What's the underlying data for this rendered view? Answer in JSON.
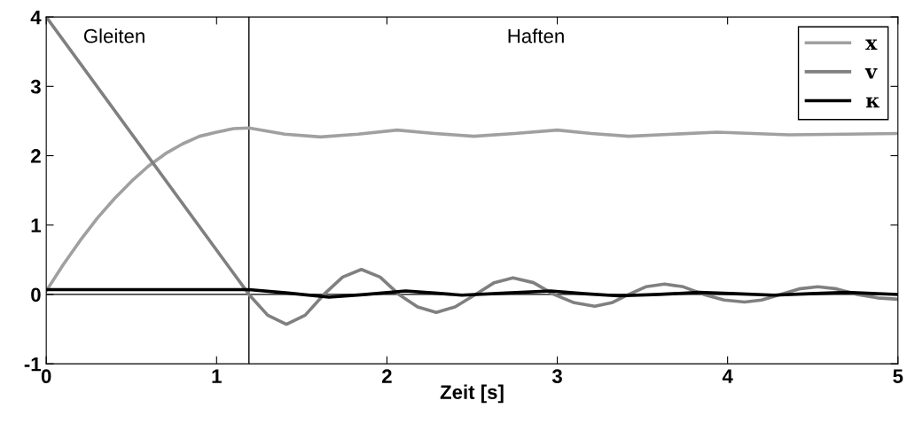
{
  "chart_data": {
    "type": "line",
    "xlabel": "Zeit [s]",
    "xlim": [
      0,
      5
    ],
    "ylim": [
      -1,
      4
    ],
    "xticks": [
      0,
      1,
      2,
      3,
      4,
      5
    ],
    "yticks": [
      -1,
      0,
      1,
      2,
      3,
      4
    ],
    "grid": false,
    "legend": "top right",
    "line_style": "solid",
    "marker": "none",
    "series": [
      {
        "name": "x",
        "color": "#a0a0a0",
        "x": [
          0,
          0.1,
          0.2,
          0.3,
          0.4,
          0.5,
          0.6,
          0.7,
          0.8,
          0.9,
          1.0,
          1.1,
          1.19,
          1.4,
          1.61,
          1.83,
          2.06,
          2.28,
          2.51,
          2.75,
          3.0,
          3.2,
          3.42,
          3.68,
          3.94,
          4.15,
          4.36,
          4.7,
          5.0
        ],
        "values": [
          0.05,
          0.43,
          0.78,
          1.1,
          1.38,
          1.63,
          1.85,
          2.03,
          2.17,
          2.28,
          2.34,
          2.39,
          2.4,
          2.31,
          2.27,
          2.31,
          2.37,
          2.32,
          2.28,
          2.32,
          2.37,
          2.32,
          2.28,
          2.31,
          2.34,
          2.32,
          2.3,
          2.31,
          2.32
        ]
      },
      {
        "name": "v",
        "color": "#808080",
        "x": [
          0,
          1.19,
          1.3,
          1.41,
          1.52,
          1.63,
          1.74,
          1.85,
          1.96,
          2.07,
          2.18,
          2.29,
          2.4,
          2.52,
          2.63,
          2.74,
          2.86,
          2.98,
          3.1,
          3.22,
          3.32,
          3.42,
          3.52,
          3.63,
          3.74,
          3.86,
          3.98,
          4.1,
          4.2,
          4.31,
          4.42,
          4.53,
          4.64,
          4.76,
          4.88,
          5.0
        ],
        "values": [
          4,
          0,
          -0.3,
          -0.43,
          -0.3,
          0,
          0.25,
          0.36,
          0.25,
          0,
          -0.18,
          -0.26,
          -0.18,
          0,
          0.17,
          0.24,
          0.17,
          0,
          -0.12,
          -0.17,
          -0.12,
          0,
          0.11,
          0.15,
          0.11,
          0,
          -0.08,
          -0.11,
          -0.08,
          0,
          0.08,
          0.11,
          0.08,
          0,
          -0.05,
          -0.07
        ]
      },
      {
        "name": "κ",
        "color": "#000000",
        "x": [
          0,
          1.19,
          1.42,
          1.66,
          1.88,
          2.11,
          2.28,
          2.44,
          2.7,
          2.96,
          3.16,
          3.36,
          3.6,
          3.83,
          4.05,
          4.27,
          4.48,
          4.7,
          5.0
        ],
        "values": [
          0.07,
          0.07,
          0.02,
          -0.04,
          0.0,
          0.05,
          0.02,
          -0.01,
          0.02,
          0.05,
          0.01,
          -0.02,
          0.0,
          0.03,
          0.01,
          -0.01,
          0.01,
          0.03,
          0.0
        ]
      }
    ],
    "ref_lines": [
      {
        "axis": "x",
        "value": 1.19,
        "color": "#000000"
      },
      {
        "axis": "y",
        "value": 0,
        "color": "#000000"
      }
    ],
    "annotations": [
      "Gleiten",
      "Haften"
    ]
  }
}
